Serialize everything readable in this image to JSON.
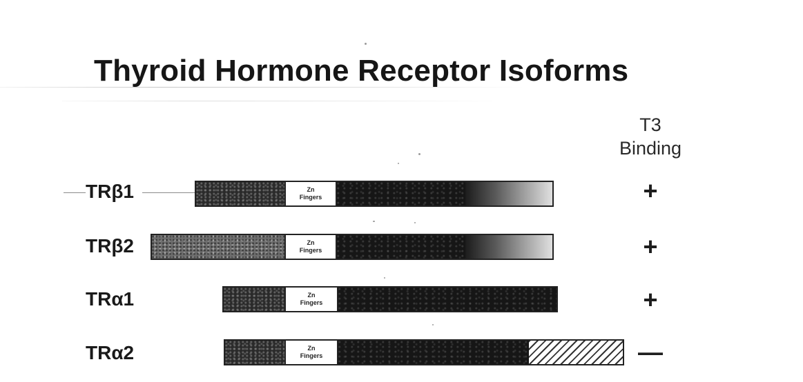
{
  "title": "Thyroid Hormone Receptor Isoforms",
  "t3_header": {
    "line1": "T3",
    "line2": "Binding"
  },
  "zinc_finger_label": {
    "line1": "Zn",
    "line2": "Fingers"
  },
  "isoforms": [
    {
      "label": "TRβ1",
      "t3_binding": "+"
    },
    {
      "label": "TRβ2",
      "t3_binding": "+"
    },
    {
      "label": "TRα1",
      "t3_binding": "+"
    },
    {
      "label": "TRα2",
      "t3_binding": "—"
    }
  ],
  "colors": {
    "dark": "#161616",
    "gray": "#6e6e6e",
    "background": "#ffffff"
  }
}
